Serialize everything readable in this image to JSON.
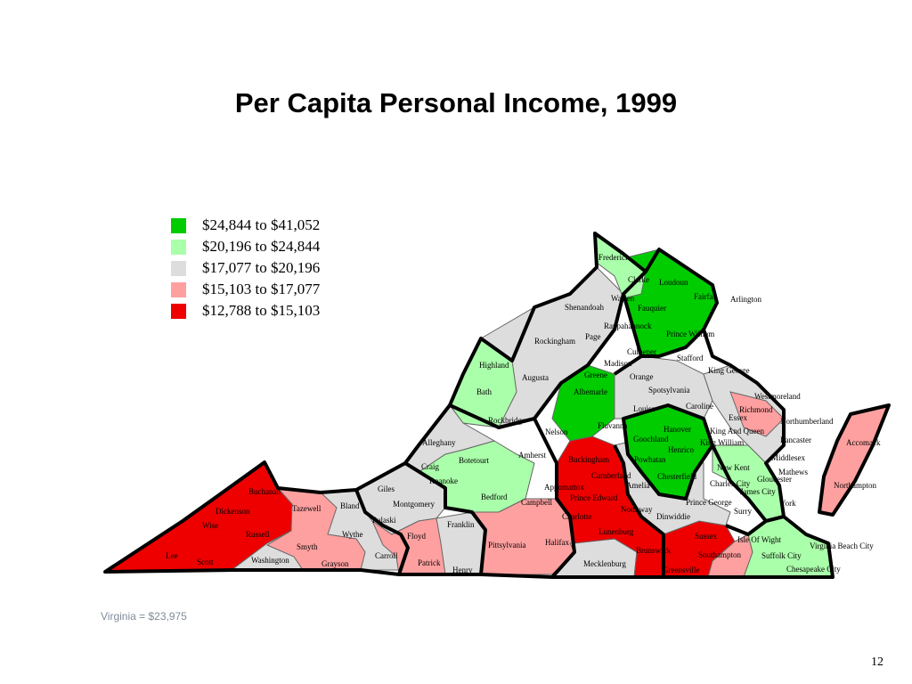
{
  "title": "Per Capita Personal Income, 1999",
  "legend": [
    {
      "label": "$24,844 to $41,052",
      "color": "#00cc00",
      "class": "q5"
    },
    {
      "label": "$20,196 to $24,844",
      "color": "#aaffaa",
      "class": "q4"
    },
    {
      "label": "$17,077 to $20,196",
      "color": "#dddddd",
      "class": "q3"
    },
    {
      "label": "$15,103 to $17,077",
      "color": "#ffa0a0",
      "class": "q2"
    },
    {
      "label": "$12,788 to $15,103",
      "color": "#ee0000",
      "class": "q1"
    }
  ],
  "counties": [
    "Frederick",
    "Clarke",
    "Loudoun",
    "Fairfax",
    "Arlington",
    "Warren",
    "Shenandoah",
    "Fauquier",
    "Rappahannock",
    "Prince William",
    "Page",
    "Rockingham",
    "Culpeper",
    "Stafford",
    "Highland",
    "Madison",
    "King George",
    "Augusta",
    "Greene",
    "Orange",
    "Bath",
    "Albemarle",
    "Spotsylvania",
    "Westmoreland",
    "Louisa",
    "Caroline",
    "Richmond",
    "Rockbridge",
    "Essex",
    "Northumberland",
    "Fluvanna",
    "Hanover",
    "King And Queen",
    "Nelson",
    "Goochland",
    "Lancaster",
    "Alleghany",
    "King William",
    "Accomack",
    "Henrico",
    "Middlesex",
    "Amherst",
    "Botetourt",
    "Buckingham",
    "Powhatan",
    "Craig",
    "New Kent",
    "Mathews",
    "Cumberland",
    "Chesterfield",
    "Roanoke",
    "Gloucester",
    "Charles City",
    "Appomattox",
    "Buchanan",
    "Giles",
    "Amelia",
    "James City",
    "Northampton",
    "Bedford",
    "Campbell",
    "Prince Edward",
    "Bland",
    "Montgomery",
    "Tazewell",
    "York",
    "Nottoway",
    "Prince George",
    "Dickenson",
    "Pulaski",
    "Dinwiddie",
    "Surry",
    "Charlotte",
    "Franklin",
    "Wise",
    "Lunenburg",
    "Russell",
    "Wythe",
    "Floyd",
    "Sussex",
    "Smyth",
    "Isle Of Wight",
    "Pittsylvania",
    "Virginia Beach City",
    "Halifax",
    "Lee",
    "Carroll",
    "Brunswick",
    "Southampton",
    "Suffolk City",
    "Scott",
    "Washington",
    "Grayson",
    "Patrick",
    "Mecklenburg",
    "Henry",
    "Greensville",
    "Chesapeake City"
  ],
  "footnote": "Virginia = $23,975",
  "page_number": "12"
}
